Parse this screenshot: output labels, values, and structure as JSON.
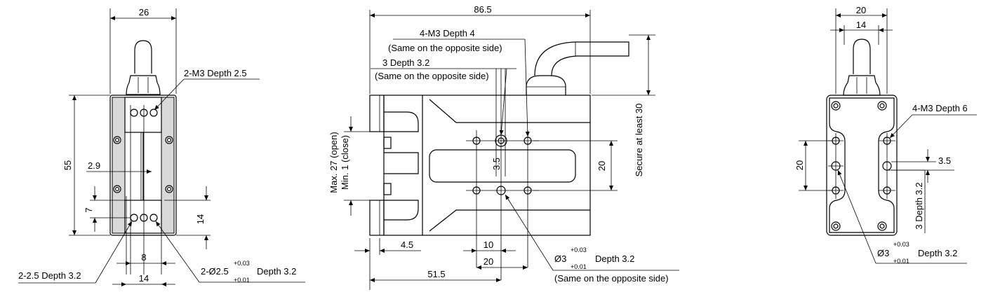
{
  "front_view": {
    "width_26": "26",
    "height_55": "55",
    "offset_2_9": "2.9",
    "offset_7": "7",
    "height_14": "14",
    "pitch_8": "8",
    "width_14": "14",
    "label_m3": "2-M3 Depth 2.5",
    "label_hole": "2-2.5 Depth 3.2",
    "label_pin_prefix": "2-Ø2.5",
    "label_pin_tol_upper": "+0.03",
    "label_pin_tol_lower": "+0.01",
    "label_pin_suffix": "Depth 3.2"
  },
  "side_view": {
    "length_86_5": "86.5",
    "label_m3_top": "4-M3 Depth 4",
    "label_same_1": "(Same on the opposite side)",
    "label_3_depth": "3 Depth 3.2",
    "label_same_2": "(Same on the opposite side)",
    "label_stroke_open": "Max. 27 (open)",
    "label_stroke_close": "Min. 1 (close)",
    "dim_3_5": "3.5",
    "dim_20": "20",
    "label_secure": "Secure at least 30",
    "dim_4_5": "4.5",
    "dim_10": "10",
    "dim_20_b": "20",
    "dim_51_5": "51.5",
    "label_pin_prefix": "Ø3",
    "label_pin_tol_upper": "+0.03",
    "label_pin_tol_lower": "+0.01",
    "label_pin_suffix": "Depth 3.2",
    "label_same_3": "(Same on the opposite side)"
  },
  "end_view": {
    "width_20": "20",
    "width_14": "14",
    "label_m3": "4-M3 Depth 6",
    "height_20": "20",
    "dim_3_5": "3.5",
    "label_3_depth": "3 Depth 3.2",
    "label_pin_prefix": "Ø3",
    "label_pin_tol_upper": "+0.03",
    "label_pin_tol_lower": "+0.01",
    "label_pin_suffix": "Depth 3.2"
  }
}
